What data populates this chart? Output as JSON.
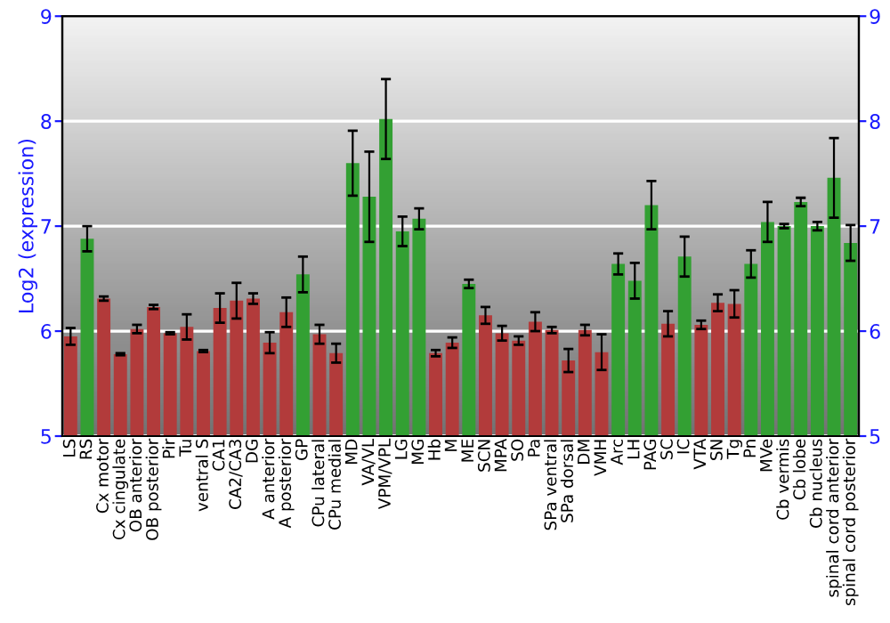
{
  "chart_data": {
    "type": "bar",
    "ylabel": "Log2 (expression)",
    "categories": [
      "LS",
      "RS",
      "Cx motor",
      "Cx cingulate",
      "OB anterior",
      "OB posterior",
      "Pir",
      "Tu",
      "ventral S",
      "CA1",
      "CA2/CA3",
      "DG",
      "A anterior",
      "A posterior",
      "GP",
      "CPu lateral",
      "CPu medial",
      "MD",
      "VA/VL",
      "VPM/VPL",
      "LG",
      "MG",
      "Hb",
      "M",
      "ME",
      "SCN",
      "MPA",
      "SO",
      "Pa",
      "SPa ventral",
      "SPa dorsal",
      "DM",
      "VMH",
      "Arc",
      "LH",
      "PAG",
      "SC",
      "IC",
      "VTA",
      "SN",
      "Tg",
      "Pn",
      "MVe",
      "Cb vermis",
      "Cb lobe",
      "Cb nucleus",
      "spinal cord anterior",
      "spinal cord posterior"
    ],
    "values": [
      5.95,
      6.88,
      6.31,
      5.78,
      6.02,
      6.23,
      5.98,
      6.04,
      5.81,
      6.22,
      6.29,
      6.31,
      5.89,
      6.18,
      6.54,
      5.97,
      5.79,
      7.6,
      7.28,
      8.02,
      6.95,
      7.07,
      5.79,
      5.89,
      6.45,
      6.15,
      5.98,
      5.91,
      6.09,
      6.01,
      5.72,
      6.01,
      5.8,
      6.64,
      6.48,
      7.2,
      6.07,
      6.71,
      6.06,
      6.27,
      6.26,
      6.64,
      7.04,
      7.0,
      7.23,
      7.0,
      7.46,
      6.84
    ],
    "errors": [
      0.08,
      0.12,
      0.02,
      0.01,
      0.04,
      0.02,
      0.01,
      0.12,
      0.01,
      0.14,
      0.17,
      0.05,
      0.1,
      0.14,
      0.17,
      0.09,
      0.09,
      0.31,
      0.43,
      0.38,
      0.14,
      0.1,
      0.03,
      0.05,
      0.04,
      0.08,
      0.07,
      0.04,
      0.09,
      0.03,
      0.11,
      0.05,
      0.17,
      0.1,
      0.17,
      0.23,
      0.12,
      0.19,
      0.04,
      0.08,
      0.13,
      0.13,
      0.19,
      0.02,
      0.04,
      0.04,
      0.38,
      0.17
    ],
    "colors": [
      "#b23b3b",
      "#33a033",
      "#b23b3b",
      "#b23b3b",
      "#b23b3b",
      "#b23b3b",
      "#b23b3b",
      "#b23b3b",
      "#b23b3b",
      "#b23b3b",
      "#b23b3b",
      "#b23b3b",
      "#b23b3b",
      "#b23b3b",
      "#33a033",
      "#b23b3b",
      "#b23b3b",
      "#33a033",
      "#33a033",
      "#33a033",
      "#33a033",
      "#33a033",
      "#b23b3b",
      "#b23b3b",
      "#33a033",
      "#b23b3b",
      "#b23b3b",
      "#b23b3b",
      "#b23b3b",
      "#b23b3b",
      "#b23b3b",
      "#b23b3b",
      "#b23b3b",
      "#33a033",
      "#33a033",
      "#33a033",
      "#b23b3b",
      "#33a033",
      "#b23b3b",
      "#b23b3b",
      "#b23b3b",
      "#33a033",
      "#33a033",
      "#33a033",
      "#33a033",
      "#33a033",
      "#33a033",
      "#33a033"
    ],
    "ylim": [
      5,
      9
    ],
    "yticks": [
      5,
      6,
      7,
      8,
      9
    ],
    "y2lim": [
      5,
      9
    ],
    "y2ticks": [
      5,
      6,
      7,
      8,
      9
    ],
    "grid": "y"
  }
}
